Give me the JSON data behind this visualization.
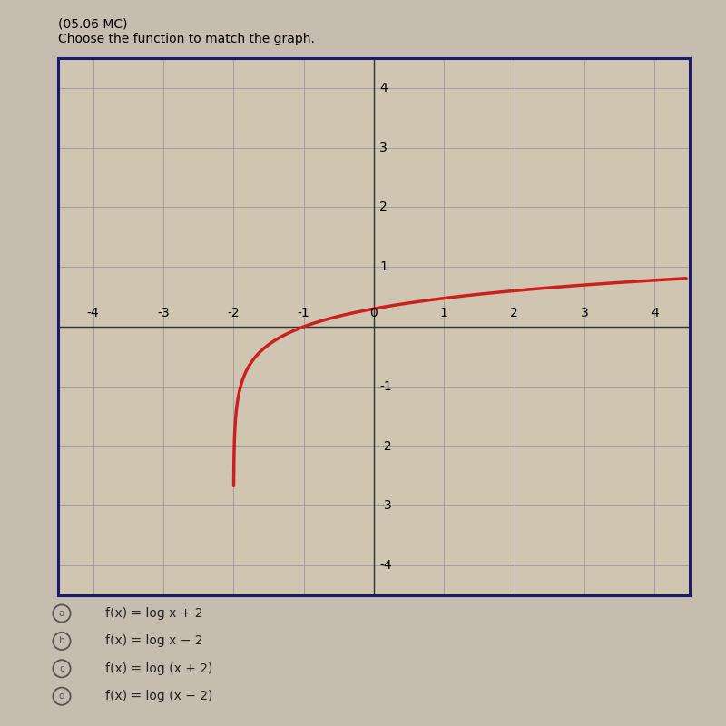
{
  "title_top": "(05.06 MC)",
  "subtitle": "Choose the function to match the graph.",
  "xlim": [
    -4.5,
    4.5
  ],
  "ylim": [
    -4.5,
    4.5
  ],
  "xticks": [
    -4,
    -3,
    -2,
    -1,
    0,
    1,
    2,
    3,
    4
  ],
  "yticks": [
    -4,
    -3,
    -2,
    -1,
    1,
    2,
    3,
    4
  ],
  "curve_color": "#cc2020",
  "curve_linewidth": 2.5,
  "background_color": "#cfc5b0",
  "grid_color": "#999999",
  "border_color": "#1a1a6e",
  "axis_color": "#333333",
  "choices": [
    [
      "a",
      "f(x) = log x + 2"
    ],
    [
      "b",
      "f(x) = log x − 2"
    ],
    [
      "c",
      "f(x) = log (x + 2)"
    ],
    [
      "d",
      "f(x) = log (x − 2)"
    ]
  ],
  "figsize": [
    8.0,
    8.0
  ],
  "dpi": 100
}
